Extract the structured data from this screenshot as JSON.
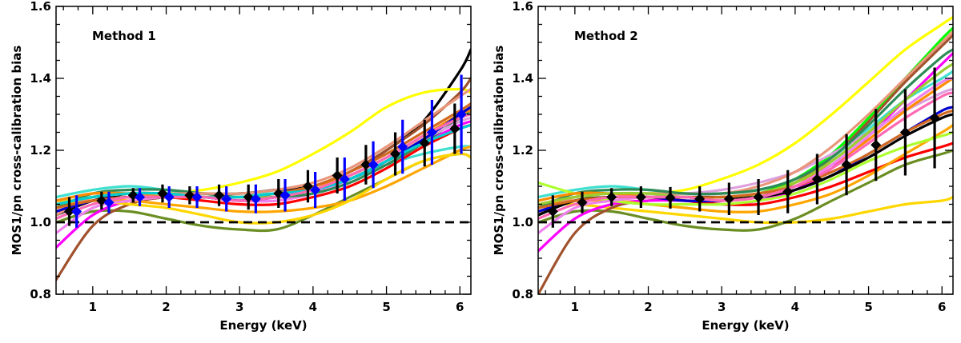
{
  "chart_data": [
    {
      "type": "line",
      "annotation": "Method 1",
      "xlabel": "Energy (keV)",
      "ylabel": "MOS1/pn cross-calibration bias",
      "xlim": [
        0.5,
        6.15
      ],
      "ylim": [
        0.8,
        1.6
      ],
      "xticks": [
        1,
        2,
        3,
        4,
        5,
        6
      ],
      "yticks": [
        0.8,
        1.0,
        1.2,
        1.4,
        1.6
      ],
      "reference_line": {
        "y": 1.0,
        "style": "dashed",
        "color": "#000000"
      },
      "curve_x": [
        0.5,
        1.0,
        1.5,
        2.0,
        2.5,
        3.0,
        3.5,
        4.0,
        4.5,
        5.0,
        5.5,
        6.0,
        6.15
      ],
      "curves": [
        {
          "color": "#000000",
          "y": [
            1.02,
            1.06,
            1.08,
            1.08,
            1.08,
            1.08,
            1.09,
            1.1,
            1.14,
            1.2,
            1.28,
            1.42,
            1.48
          ]
        },
        {
          "color": "#ffff00",
          "y": [
            1.04,
            1.07,
            1.08,
            1.08,
            1.09,
            1.11,
            1.14,
            1.19,
            1.25,
            1.32,
            1.36,
            1.37,
            1.36
          ]
        },
        {
          "color": "#6b8e23",
          "y": [
            1.0,
            1.03,
            1.03,
            1.01,
            0.99,
            0.98,
            0.98,
            1.02,
            1.07,
            1.12,
            1.17,
            1.19,
            1.18
          ]
        },
        {
          "color": "#40e0d0",
          "y": [
            1.07,
            1.09,
            1.1,
            1.09,
            1.08,
            1.08,
            1.08,
            1.09,
            1.12,
            1.16,
            1.19,
            1.21,
            1.21
          ]
        },
        {
          "color": "#ff00ff",
          "y": [
            0.93,
            1.02,
            1.06,
            1.07,
            1.07,
            1.06,
            1.07,
            1.09,
            1.12,
            1.17,
            1.22,
            1.27,
            1.28
          ]
        },
        {
          "color": "#a0522d",
          "y": [
            0.84,
            0.99,
            1.05,
            1.07,
            1.07,
            1.07,
            1.08,
            1.1,
            1.14,
            1.2,
            1.27,
            1.36,
            1.4
          ]
        },
        {
          "color": "#ffa500",
          "y": [
            1.05,
            1.06,
            1.06,
            1.05,
            1.04,
            1.03,
            1.03,
            1.04,
            1.06,
            1.1,
            1.15,
            1.2,
            1.21
          ]
        },
        {
          "color": "#ffd700",
          "y": [
            1.06,
            1.06,
            1.05,
            1.04,
            1.02,
            1.0,
            1.0,
            1.02,
            1.06,
            1.12,
            1.17,
            1.19,
            1.18
          ]
        },
        {
          "color": "#ee82ee",
          "y": [
            0.97,
            1.04,
            1.06,
            1.07,
            1.07,
            1.06,
            1.06,
            1.08,
            1.12,
            1.17,
            1.22,
            1.26,
            1.27
          ]
        },
        {
          "color": "#ff0000",
          "y": [
            1.03,
            1.06,
            1.07,
            1.07,
            1.06,
            1.05,
            1.05,
            1.07,
            1.1,
            1.15,
            1.21,
            1.26,
            1.27
          ]
        },
        {
          "color": "#2e8b57",
          "y": [
            1.04,
            1.08,
            1.09,
            1.09,
            1.08,
            1.07,
            1.07,
            1.08,
            1.11,
            1.16,
            1.22,
            1.29,
            1.31
          ]
        },
        {
          "color": "#e9967a",
          "y": [
            1.02,
            1.07,
            1.08,
            1.08,
            1.08,
            1.08,
            1.09,
            1.11,
            1.15,
            1.21,
            1.28,
            1.35,
            1.37
          ]
        },
        {
          "color": "#dda0dd",
          "y": [
            1.05,
            1.07,
            1.08,
            1.08,
            1.07,
            1.07,
            1.08,
            1.1,
            1.13,
            1.18,
            1.23,
            1.28,
            1.29
          ]
        },
        {
          "color": "#ff8c00",
          "y": [
            1.06,
            1.08,
            1.08,
            1.07,
            1.07,
            1.07,
            1.08,
            1.1,
            1.13,
            1.18,
            1.24,
            1.3,
            1.31
          ]
        },
        {
          "color": "#9acd32",
          "y": [
            1.05,
            1.07,
            1.08,
            1.08,
            1.07,
            1.07,
            1.07,
            1.09,
            1.12,
            1.17,
            1.23,
            1.3,
            1.32
          ]
        },
        {
          "color": "#0000cd",
          "y": [
            1.03,
            1.06,
            1.07,
            1.07,
            1.07,
            1.06,
            1.07,
            1.09,
            1.12,
            1.17,
            1.23,
            1.3,
            1.32
          ]
        },
        {
          "color": "#d2691e",
          "y": [
            1.04,
            1.06,
            1.07,
            1.07,
            1.07,
            1.07,
            1.08,
            1.1,
            1.14,
            1.19,
            1.25,
            1.31,
            1.33
          ]
        },
        {
          "color": "#00ced1",
          "y": [
            1.05,
            1.07,
            1.08,
            1.08,
            1.07,
            1.07,
            1.08,
            1.09,
            1.12,
            1.17,
            1.22,
            1.26,
            1.27
          ]
        },
        {
          "color": "#ff69b4",
          "y": [
            1.01,
            1.05,
            1.07,
            1.07,
            1.07,
            1.06,
            1.07,
            1.09,
            1.13,
            1.18,
            1.24,
            1.29,
            1.3
          ]
        }
      ],
      "series": [
        {
          "name": "",
          "color": "#000000",
          "marker": "diamond",
          "x": [
            0.68,
            1.12,
            1.55,
            1.95,
            2.32,
            2.72,
            3.12,
            3.53,
            3.93,
            4.33,
            4.72,
            5.12,
            5.52,
            5.93
          ],
          "y": [
            1.03,
            1.06,
            1.075,
            1.08,
            1.075,
            1.075,
            1.07,
            1.08,
            1.1,
            1.13,
            1.16,
            1.19,
            1.22,
            1.26
          ],
          "err": [
            0.04,
            0.025,
            0.02,
            0.025,
            0.025,
            0.03,
            0.035,
            0.04,
            0.045,
            0.05,
            0.055,
            0.06,
            0.065,
            0.07
          ]
        },
        {
          "name": "",
          "color": "#0000ff",
          "marker": "diamond",
          "x": [
            0.78,
            1.22,
            1.64,
            2.04,
            2.42,
            2.82,
            3.22,
            3.62,
            4.03,
            4.43,
            4.82,
            5.22,
            5.62,
            6.02
          ],
          "y": [
            1.03,
            1.055,
            1.07,
            1.07,
            1.07,
            1.065,
            1.065,
            1.075,
            1.09,
            1.12,
            1.16,
            1.21,
            1.25,
            1.3
          ],
          "err": [
            0.045,
            0.03,
            0.025,
            0.03,
            0.03,
            0.035,
            0.04,
            0.045,
            0.05,
            0.06,
            0.065,
            0.075,
            0.09,
            0.11
          ]
        }
      ]
    },
    {
      "type": "line",
      "annotation": "Method 2",
      "xlabel": "Energy (keV)",
      "ylabel": "MOS1/pn cross-calibration bias",
      "xlim": [
        0.5,
        6.15
      ],
      "ylim": [
        0.8,
        1.6
      ],
      "xticks": [
        1,
        2,
        3,
        4,
        5,
        6
      ],
      "yticks": [
        0.8,
        1.0,
        1.2,
        1.4,
        1.6
      ],
      "reference_line": {
        "y": 1.0,
        "style": "dashed",
        "color": "#000000"
      },
      "curve_x": [
        0.5,
        1.0,
        1.5,
        2.0,
        2.5,
        3.0,
        3.5,
        4.0,
        4.5,
        5.0,
        5.5,
        6.0,
        6.15
      ],
      "curves": [
        {
          "color": "#ffff00",
          "y": [
            1.04,
            1.07,
            1.08,
            1.08,
            1.09,
            1.12,
            1.16,
            1.22,
            1.3,
            1.39,
            1.48,
            1.55,
            1.57
          ]
        },
        {
          "color": "#ffd700",
          "y": [
            1.05,
            1.05,
            1.04,
            1.03,
            1.02,
            1.01,
            1.0,
            1.0,
            1.01,
            1.03,
            1.05,
            1.06,
            1.07
          ]
        },
        {
          "color": "#6b8e23",
          "y": [
            1.0,
            1.03,
            1.03,
            1.01,
            0.99,
            0.98,
            0.98,
            1.01,
            1.06,
            1.11,
            1.16,
            1.19,
            1.2
          ]
        },
        {
          "color": "#40e0d0",
          "y": [
            1.07,
            1.09,
            1.1,
            1.09,
            1.08,
            1.08,
            1.09,
            1.12,
            1.18,
            1.26,
            1.34,
            1.4,
            1.42
          ]
        },
        {
          "color": "#00ff00",
          "y": [
            1.02,
            1.06,
            1.07,
            1.07,
            1.07,
            1.07,
            1.08,
            1.12,
            1.19,
            1.29,
            1.4,
            1.51,
            1.54
          ]
        },
        {
          "color": "#a0522d",
          "y": [
            0.8,
            0.97,
            1.04,
            1.06,
            1.06,
            1.06,
            1.07,
            1.11,
            1.18,
            1.28,
            1.39,
            1.49,
            1.52
          ]
        },
        {
          "color": "#ff00ff",
          "y": [
            0.92,
            1.01,
            1.05,
            1.06,
            1.06,
            1.05,
            1.06,
            1.09,
            1.15,
            1.24,
            1.34,
            1.44,
            1.47
          ]
        },
        {
          "color": "#ff0000",
          "y": [
            1.03,
            1.06,
            1.07,
            1.07,
            1.06,
            1.05,
            1.05,
            1.07,
            1.1,
            1.14,
            1.18,
            1.21,
            1.22
          ]
        },
        {
          "color": "#ffa500",
          "y": [
            1.05,
            1.06,
            1.06,
            1.05,
            1.04,
            1.03,
            1.03,
            1.05,
            1.08,
            1.13,
            1.19,
            1.25,
            1.27
          ]
        },
        {
          "color": "#adff2f",
          "y": [
            1.11,
            1.08,
            1.06,
            1.05,
            1.05,
            1.05,
            1.06,
            1.08,
            1.12,
            1.17,
            1.21,
            1.24,
            1.25
          ]
        },
        {
          "color": "#dda0dd",
          "y": [
            1.05,
            1.07,
            1.08,
            1.08,
            1.08,
            1.09,
            1.11,
            1.14,
            1.19,
            1.25,
            1.31,
            1.36,
            1.37
          ]
        },
        {
          "color": "#e9967a",
          "y": [
            1.02,
            1.07,
            1.08,
            1.08,
            1.08,
            1.08,
            1.1,
            1.14,
            1.21,
            1.3,
            1.4,
            1.5,
            1.53
          ]
        },
        {
          "color": "#2e8b57",
          "y": [
            1.04,
            1.08,
            1.09,
            1.09,
            1.08,
            1.08,
            1.09,
            1.12,
            1.18,
            1.27,
            1.37,
            1.46,
            1.48
          ]
        },
        {
          "color": "#0000cd",
          "y": [
            1.03,
            1.06,
            1.07,
            1.07,
            1.06,
            1.06,
            1.07,
            1.09,
            1.13,
            1.19,
            1.25,
            1.31,
            1.32
          ]
        },
        {
          "color": "#ff8c00",
          "y": [
            1.06,
            1.08,
            1.08,
            1.07,
            1.07,
            1.07,
            1.08,
            1.11,
            1.16,
            1.23,
            1.31,
            1.38,
            1.4
          ]
        },
        {
          "color": "#000000",
          "y": [
            1.02,
            1.06,
            1.07,
            1.07,
            1.07,
            1.07,
            1.07,
            1.09,
            1.13,
            1.18,
            1.24,
            1.29,
            1.3
          ]
        },
        {
          "color": "#ee82ee",
          "y": [
            0.97,
            1.04,
            1.06,
            1.07,
            1.07,
            1.06,
            1.07,
            1.1,
            1.16,
            1.24,
            1.32,
            1.39,
            1.4
          ]
        },
        {
          "color": "#9acd32",
          "y": [
            1.05,
            1.07,
            1.08,
            1.08,
            1.07,
            1.07,
            1.08,
            1.11,
            1.17,
            1.25,
            1.34,
            1.42,
            1.44
          ]
        },
        {
          "color": "#d2691e",
          "y": [
            1.04,
            1.06,
            1.07,
            1.07,
            1.07,
            1.07,
            1.08,
            1.1,
            1.14,
            1.19,
            1.25,
            1.3,
            1.31
          ]
        },
        {
          "color": "#ff69b4",
          "y": [
            1.01,
            1.05,
            1.07,
            1.07,
            1.07,
            1.06,
            1.07,
            1.1,
            1.15,
            1.22,
            1.29,
            1.35,
            1.36
          ]
        }
      ],
      "series": [
        {
          "name": "",
          "color": "#000000",
          "marker": "diamond",
          "x": [
            0.7,
            1.1,
            1.5,
            1.9,
            2.3,
            2.7,
            3.1,
            3.5,
            3.9,
            4.3,
            4.7,
            5.1,
            5.5,
            5.9
          ],
          "y": [
            1.03,
            1.055,
            1.07,
            1.07,
            1.068,
            1.065,
            1.065,
            1.07,
            1.085,
            1.12,
            1.16,
            1.215,
            1.25,
            1.29
          ],
          "err": [
            0.045,
            0.03,
            0.025,
            0.03,
            0.03,
            0.035,
            0.045,
            0.05,
            0.06,
            0.07,
            0.085,
            0.1,
            0.12,
            0.14
          ]
        }
      ]
    }
  ]
}
